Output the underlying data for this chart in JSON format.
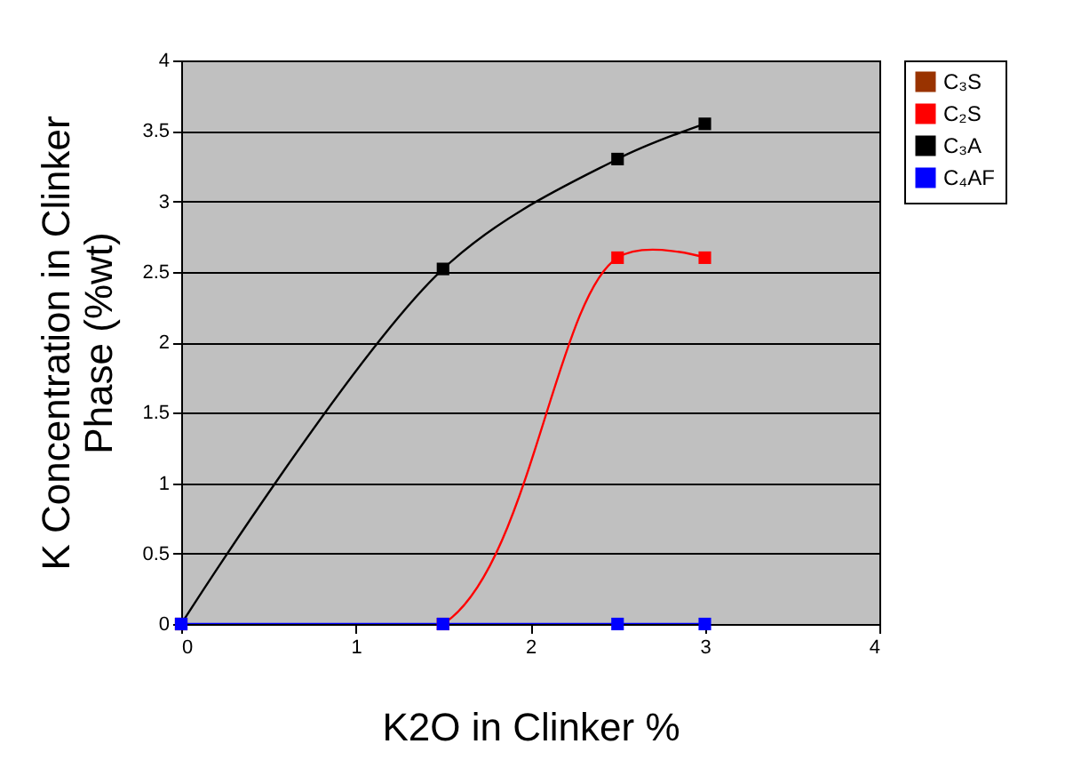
{
  "chart_data": {
    "type": "line",
    "xlabel": "K2O  in Clinker %",
    "ylabel": "K  Concentration in Clinker\nPhase  (%wt)",
    "xlim": [
      0,
      4
    ],
    "xticks": [
      0,
      1,
      2,
      3,
      4
    ],
    "ylim": [
      0,
      4
    ],
    "yticks": [
      0,
      0.5,
      1,
      1.5,
      2,
      2.5,
      3,
      3.5,
      4
    ],
    "grid": "y",
    "legend": "right",
    "marker": "square",
    "series": [
      {
        "name": "C₃S",
        "color": "#993300",
        "values": [
          null,
          null,
          null,
          null
        ]
      },
      {
        "name": "C₂S",
        "color": "#ff0000",
        "x": [
          0,
          1.5,
          2.5,
          3
        ],
        "values": [
          0,
          0,
          2.6,
          2.6
        ]
      },
      {
        "name": "C₃A",
        "color": "#000000",
        "x": [
          0,
          1.5,
          2.5,
          3
        ],
        "values": [
          0,
          2.52,
          3.3,
          3.55
        ]
      },
      {
        "name": "C₄AF",
        "color": "#0000ff",
        "x": [
          0,
          1.5,
          2.5,
          3
        ],
        "values": [
          0,
          0,
          0,
          0
        ]
      }
    ]
  }
}
